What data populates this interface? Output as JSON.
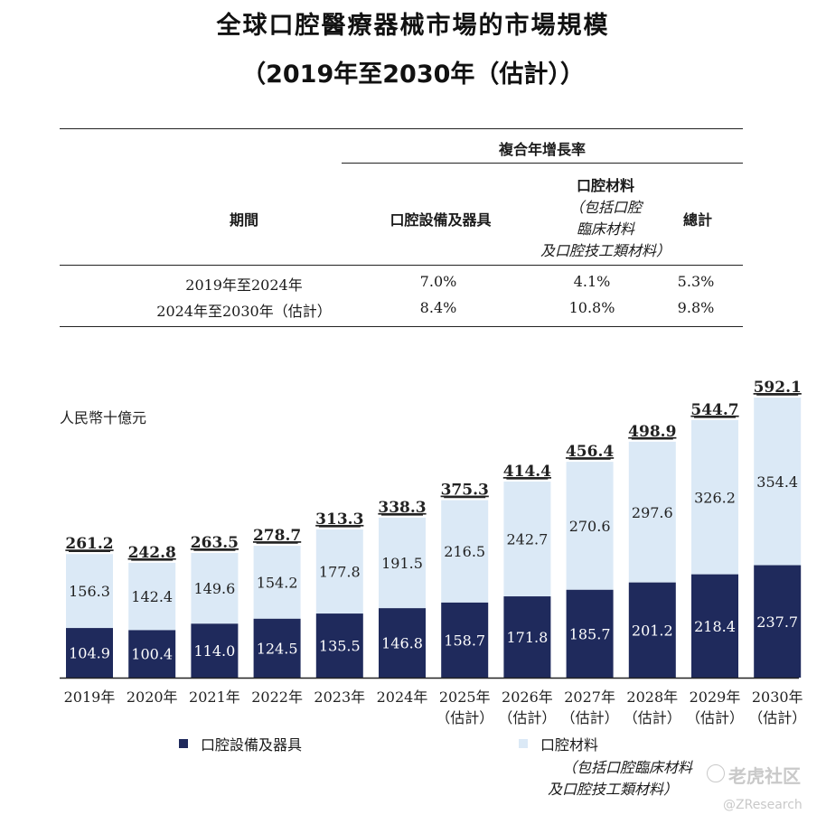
{
  "title_line1": "全球口腔醫療器械市場的市場規模",
  "title_line2": "（2019年至2030年（估計））",
  "cagr_table": {
    "group_header": "複合年增長率",
    "col_period": "期間",
    "col_equipment": "口腔設備及器具",
    "col_materials_line1": "口腔材料",
    "col_materials_line2": "（包括口腔",
    "col_materials_line3": "臨床材料",
    "col_materials_line4": "及口腔技工類材料）",
    "col_total": "總計",
    "rows": [
      {
        "period": "2019年至2024年",
        "equipment": "7.0%",
        "materials": "4.1%",
        "total": "5.3%"
      },
      {
        "period": "2024年至2030年（估計）",
        "equipment": "8.4%",
        "materials": "10.8%",
        "total": "9.8%"
      }
    ]
  },
  "unit_label": "人民幣十億元",
  "legend": {
    "equipment": "口腔設備及器具",
    "materials_line1": "口腔材料",
    "materials_line2": "（包括口腔臨床材料",
    "materials_line3": "及口腔技工類材料）"
  },
  "watermark": {
    "brand": "老虎社区",
    "handle": "@ZResearch"
  },
  "colors": {
    "equipment": "#1f2a5c",
    "materials": "#dbe9f6"
  },
  "chart_data": {
    "type": "bar",
    "stacked": true,
    "categories": [
      "2019年",
      "2020年",
      "2021年",
      "2022年",
      "2023年",
      "2024年",
      "2025年",
      "2026年",
      "2027年",
      "2028年",
      "2029年",
      "2030年"
    ],
    "category_sublabels": [
      "",
      "",
      "",
      "",
      "",
      "",
      "（估計）",
      "（估計）",
      "（估計）",
      "（估計）",
      "（估計）",
      "（估計）"
    ],
    "series": [
      {
        "name": "口腔設備及器具",
        "values": [
          104.9,
          100.4,
          114.0,
          124.5,
          135.5,
          146.8,
          158.7,
          171.8,
          185.7,
          201.2,
          218.4,
          237.7
        ]
      },
      {
        "name": "口腔材料",
        "values": [
          156.3,
          142.4,
          149.6,
          154.2,
          177.8,
          191.5,
          216.5,
          242.7,
          270.6,
          297.6,
          326.2,
          354.4
        ]
      }
    ],
    "totals": [
      261.2,
      242.8,
      263.5,
      278.7,
      313.3,
      338.3,
      375.3,
      414.4,
      456.4,
      498.9,
      544.7,
      592.1
    ],
    "ylabel": "人民幣十億元",
    "ylim": [
      0,
      592.1
    ]
  }
}
